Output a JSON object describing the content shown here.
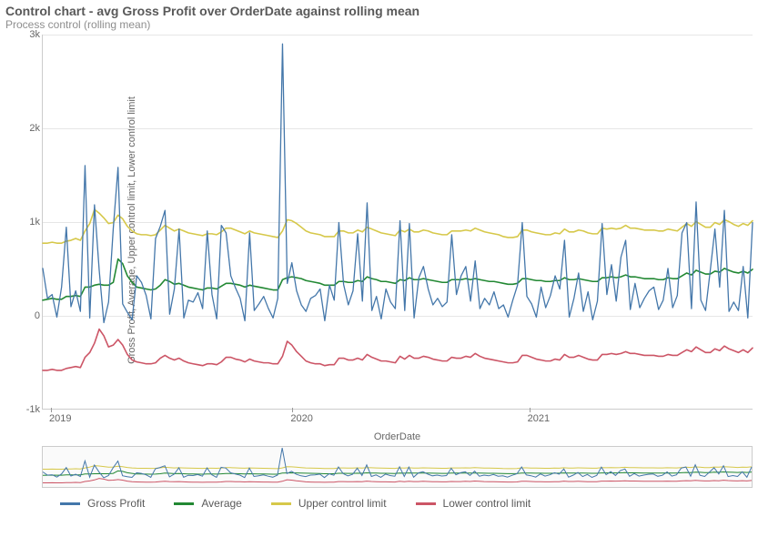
{
  "title": "Control chart - avg Gross Profit over OrderDate against rolling mean",
  "subtitle": "Process control (rolling mean)",
  "xlabel": "OrderDate",
  "ylabel": "Gross Profit, Average, Upper control limit, Lower control limit",
  "type": "line",
  "background_color": "#ffffff",
  "grid_color": "#e6e6e6",
  "axis_color": "#cccccc",
  "tick_font_color": "#666666",
  "title_font_color": "#595959",
  "subtitle_font_color": "#8e8e8e",
  "title_fontsize": 14,
  "subtitle_fontsize": 12,
  "tick_fontsize": 11,
  "xlim": [
    0,
    156
  ],
  "ylim": [
    -1000,
    3000
  ],
  "yticks": [
    -1000,
    0,
    1000,
    2000,
    3000
  ],
  "ytick_labels": [
    "-1k",
    "0",
    "1k",
    "2k",
    "3k"
  ],
  "xticks": [
    2,
    55,
    107
  ],
  "xtick_labels": [
    "2019",
    "2020",
    "2021"
  ],
  "legend": [
    {
      "key": "gross_profit",
      "label": "Gross Profit",
      "color": "#4477aa"
    },
    {
      "key": "average",
      "label": "Average",
      "color": "#228833"
    },
    {
      "key": "ucl",
      "label": "Upper control limit",
      "color": "#d6c84a"
    },
    {
      "key": "lcl",
      "label": "Lower control limit",
      "color": "#cc5566"
    }
  ],
  "series": {
    "gross_profit": {
      "color": "#4477aa",
      "line_width": 1.3,
      "values": [
        500,
        180,
        220,
        -20,
        300,
        940,
        90,
        260,
        40,
        1600,
        -30,
        1180,
        480,
        -80,
        140,
        930,
        1580,
        120,
        30,
        -50,
        420,
        350,
        210,
        -40,
        820,
        950,
        1120,
        10,
        280,
        920,
        -30,
        160,
        140,
        240,
        70,
        900,
        220,
        -40,
        960,
        880,
        420,
        290,
        180,
        -60,
        880,
        50,
        120,
        200,
        70,
        -30,
        180,
        2900,
        340,
        560,
        260,
        110,
        40,
        180,
        210,
        280,
        -60,
        320,
        160,
        990,
        330,
        110,
        260,
        870,
        150,
        1200,
        50,
        200,
        -40,
        280,
        140,
        70,
        1010,
        50,
        980,
        -30,
        400,
        520,
        280,
        110,
        180,
        90,
        140,
        860,
        220,
        420,
        520,
        150,
        580,
        70,
        180,
        110,
        250,
        70,
        110,
        -20,
        160,
        320,
        990,
        200,
        120,
        -20,
        300,
        80,
        210,
        420,
        280,
        800,
        -20,
        180,
        450,
        40,
        250,
        -50,
        150,
        980,
        220,
        540,
        150,
        620,
        800,
        60,
        340,
        80,
        180,
        260,
        300,
        60,
        160,
        500,
        80,
        210,
        880,
        990,
        70,
        1210,
        160,
        50,
        480,
        920,
        300,
        1120,
        40,
        140,
        50,
        520,
        -30,
        990
      ]
    },
    "average": {
      "color": "#228833",
      "line_width": 1.6,
      "values": [
        160,
        170,
        180,
        170,
        170,
        200,
        200,
        210,
        200,
        300,
        300,
        320,
        330,
        320,
        320,
        350,
        600,
        550,
        420,
        350,
        300,
        290,
        280,
        270,
        280,
        320,
        380,
        360,
        330,
        340,
        320,
        300,
        290,
        280,
        270,
        290,
        290,
        280,
        310,
        340,
        340,
        330,
        320,
        300,
        320,
        310,
        300,
        290,
        280,
        270,
        270,
        380,
        400,
        410,
        400,
        390,
        370,
        360,
        350,
        340,
        320,
        320,
        320,
        360,
        360,
        350,
        350,
        370,
        360,
        410,
        390,
        380,
        360,
        360,
        350,
        340,
        380,
        370,
        400,
        380,
        380,
        390,
        380,
        370,
        360,
        350,
        350,
        380,
        380,
        380,
        390,
        380,
        390,
        380,
        370,
        360,
        360,
        350,
        340,
        330,
        330,
        340,
        390,
        390,
        380,
        370,
        370,
        360,
        360,
        370,
        370,
        400,
        380,
        380,
        390,
        380,
        370,
        360,
        360,
        400,
        400,
        410,
        400,
        410,
        430,
        410,
        410,
        400,
        390,
        390,
        390,
        380,
        380,
        400,
        390,
        390,
        420,
        450,
        430,
        480,
        460,
        440,
        440,
        470,
        460,
        500,
        480,
        460,
        450,
        470,
        450,
        490
      ]
    },
    "ucl": {
      "color": "#d6c84a",
      "line_width": 1.6,
      "values": [
        770,
        770,
        780,
        770,
        770,
        790,
        800,
        820,
        800,
        900,
        980,
        1130,
        1090,
        1040,
        980,
        990,
        1070,
        1030,
        950,
        900,
        870,
        860,
        860,
        850,
        860,
        910,
        960,
        930,
        900,
        920,
        900,
        880,
        870,
        860,
        850,
        870,
        870,
        860,
        890,
        930,
        930,
        910,
        890,
        870,
        900,
        880,
        870,
        860,
        850,
        840,
        830,
        900,
        1020,
        1010,
        980,
        940,
        900,
        880,
        870,
        860,
        840,
        840,
        840,
        900,
        900,
        880,
        880,
        910,
        890,
        940,
        920,
        900,
        880,
        870,
        860,
        850,
        910,
        890,
        920,
        890,
        890,
        910,
        900,
        880,
        870,
        860,
        860,
        900,
        900,
        900,
        910,
        900,
        930,
        910,
        890,
        880,
        870,
        860,
        840,
        830,
        830,
        840,
        910,
        910,
        890,
        880,
        870,
        860,
        860,
        880,
        870,
        920,
        890,
        890,
        910,
        900,
        880,
        870,
        870,
        930,
        920,
        930,
        920,
        930,
        960,
        930,
        930,
        920,
        910,
        910,
        910,
        900,
        900,
        920,
        910,
        900,
        940,
        980,
        950,
        1000,
        970,
        940,
        940,
        990,
        970,
        1020,
        1000,
        970,
        950,
        980,
        960,
        1010
      ]
    },
    "lcl": {
      "color": "#cc5566",
      "line_width": 1.6,
      "values": [
        -590,
        -590,
        -580,
        -590,
        -590,
        -570,
        -560,
        -550,
        -560,
        -450,
        -400,
        -300,
        -150,
        -220,
        -340,
        -320,
        -260,
        -320,
        -420,
        -480,
        -500,
        -510,
        -520,
        -520,
        -510,
        -460,
        -430,
        -460,
        -480,
        -460,
        -490,
        -510,
        -520,
        -530,
        -540,
        -520,
        -520,
        -530,
        -500,
        -450,
        -450,
        -470,
        -480,
        -500,
        -470,
        -490,
        -500,
        -510,
        -510,
        -520,
        -520,
        -440,
        -280,
        -320,
        -390,
        -440,
        -490,
        -510,
        -520,
        -520,
        -540,
        -530,
        -530,
        -460,
        -460,
        -480,
        -480,
        -460,
        -480,
        -420,
        -450,
        -470,
        -490,
        -490,
        -500,
        -510,
        -440,
        -470,
        -430,
        -460,
        -460,
        -440,
        -450,
        -470,
        -480,
        -490,
        -490,
        -450,
        -460,
        -460,
        -440,
        -450,
        -410,
        -440,
        -460,
        -470,
        -480,
        -490,
        -500,
        -510,
        -510,
        -500,
        -430,
        -430,
        -450,
        -470,
        -480,
        -490,
        -490,
        -470,
        -480,
        -420,
        -450,
        -450,
        -430,
        -450,
        -470,
        -480,
        -480,
        -420,
        -420,
        -410,
        -420,
        -410,
        -390,
        -410,
        -410,
        -420,
        -430,
        -430,
        -430,
        -440,
        -440,
        -420,
        -430,
        -430,
        -400,
        -370,
        -390,
        -340,
        -370,
        -400,
        -400,
        -360,
        -380,
        -330,
        -360,
        -380,
        -400,
        -370,
        -400,
        -350
      ]
    }
  }
}
